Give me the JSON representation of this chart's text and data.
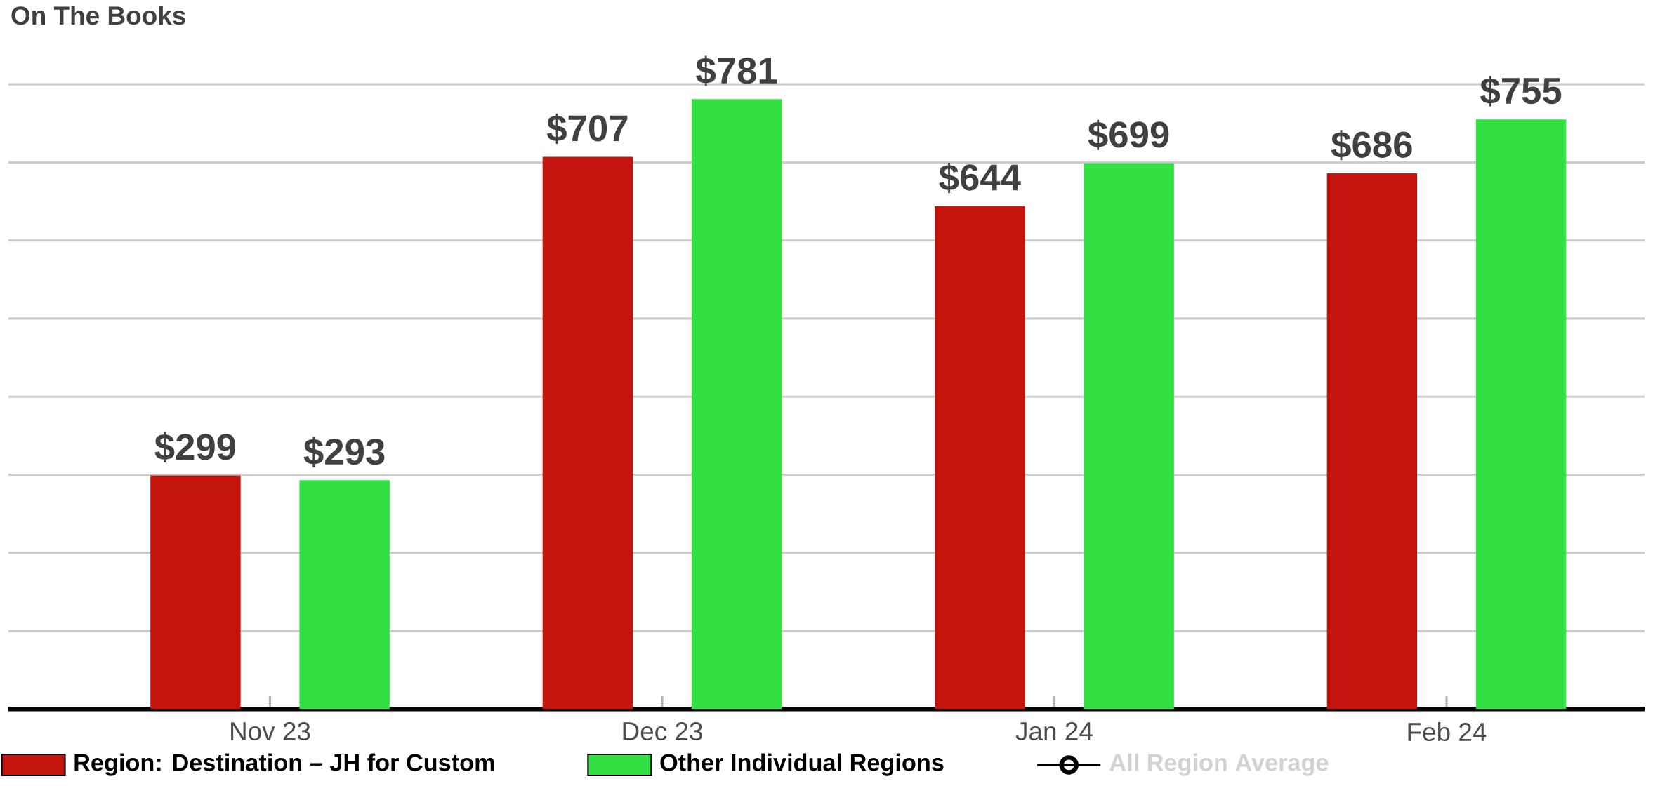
{
  "chart_data": {
    "type": "bar",
    "title": "On The Books",
    "categories": [
      "Nov 23",
      "Dec 23",
      "Jan 24",
      "Feb 24"
    ],
    "series": [
      {
        "name": "Region: Destination – JH for Custom",
        "color": "#c3150d",
        "values": [
          299,
          707,
          644,
          686
        ],
        "value_labels": [
          "$299",
          "$707",
          "$644",
          "$686"
        ]
      },
      {
        "name": "Other Individual Regions",
        "color": "#33e043",
        "values": [
          293,
          781,
          699,
          755
        ],
        "value_labels": [
          "$293",
          "$781",
          "$699",
          "$755"
        ]
      },
      {
        "name": "All Region Average",
        "type": "line",
        "marker": "circle",
        "color": "#000000",
        "values": [
          null,
          null,
          null,
          null
        ]
      }
    ],
    "ylim": [
      0,
      800
    ],
    "tick_labels": "x",
    "grid": "y",
    "legend": "bottom"
  }
}
